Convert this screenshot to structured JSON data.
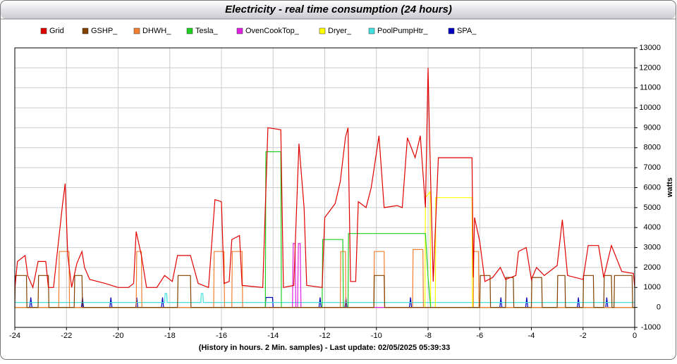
{
  "chart_data": {
    "type": "line",
    "title": "Electricity - real time consumption (24 hours)",
    "x_label": "(History in hours. 2 Min. samples) - Last update: 02/05/2025 05:39:33",
    "y_label": "watts",
    "xlim": [
      -24,
      0
    ],
    "xticks": [
      -24,
      -22,
      -20,
      -18,
      -16,
      -14,
      -12,
      -10,
      -8,
      -6,
      -4,
      -2,
      0
    ],
    "ylim": [
      -1000,
      13000
    ],
    "yticks": [
      -1000,
      0,
      1000,
      2000,
      3000,
      4000,
      5000,
      6000,
      7000,
      8000,
      9000,
      10000,
      11000,
      12000,
      13000
    ],
    "grid": true,
    "series": [
      {
        "name": "Grid",
        "color": "#e00000",
        "x": [
          -24,
          -23.9,
          -23.6,
          -23.5,
          -23.3,
          -23.1,
          -22.8,
          -22.7,
          -22.5,
          -22.35,
          -22.15,
          -22.05,
          -21.95,
          -21.8,
          -21.6,
          -21.4,
          -21.3,
          -21.1,
          -20.5,
          -20,
          -19.6,
          -19.4,
          -19.3,
          -19.1,
          -18.9,
          -18.5,
          -18.2,
          -17.9,
          -17.7,
          -17.2,
          -16.9,
          -16.5,
          -16.25,
          -16,
          -15.9,
          -15.7,
          -15.6,
          -15.3,
          -15.2,
          -14.4,
          -14.2,
          -13.7,
          -13.6,
          -13.2,
          -13,
          -12.8,
          -12.7,
          -12.1,
          -12,
          -11.6,
          -11.4,
          -11.2,
          -11.1,
          -11,
          -10.8,
          -10.7,
          -10.4,
          -10.2,
          -9.9,
          -9.7,
          -9.2,
          -9,
          -8.8,
          -8.5,
          -8.3,
          -8.1,
          -8,
          -7.95,
          -7.8,
          -7.6,
          -6.3,
          -6.25,
          -6.2,
          -6,
          -5.8,
          -5.5,
          -5.2,
          -5,
          -4.6,
          -4.5,
          -4.2,
          -4,
          -3.8,
          -3.5,
          -3,
          -2.8,
          -2.6,
          -2,
          -1.8,
          -1.4,
          -1.2,
          -0.9,
          -0.5,
          -0.05,
          0
        ],
        "values": [
          900,
          2300,
          2600,
          1600,
          1000,
          2300,
          2300,
          1000,
          1000,
          2800,
          5200,
          6200,
          2600,
          1000,
          2200,
          2800,
          2000,
          1400,
          1200,
          1000,
          1000,
          1200,
          3800,
          2600,
          1000,
          1000,
          1600,
          1300,
          2600,
          2600,
          1200,
          1000,
          5400,
          5300,
          1200,
          1300,
          3400,
          3600,
          1100,
          1000,
          9000,
          8900,
          1000,
          1100,
          8200,
          5000,
          1100,
          1000,
          4500,
          5200,
          6300,
          8500,
          9000,
          1300,
          1300,
          5300,
          5000,
          6000,
          8600,
          5000,
          5100,
          5000,
          8500,
          7500,
          8600,
          5000,
          12000,
          9000,
          1300,
          7500,
          7500,
          1500,
          4500,
          3300,
          1300,
          1500,
          2000,
          1400,
          1600,
          2800,
          3000,
          1400,
          2000,
          1600,
          2100,
          4400,
          1600,
          1400,
          3100,
          3100,
          1500,
          3100,
          1800,
          1700,
          1000
        ]
      },
      {
        "name": "GSHP_",
        "color": "#804000",
        "x": [
          -24,
          -23.98,
          -23.55,
          -23.53,
          -23.1,
          -23.08,
          -22.7,
          -22.68,
          -21.7,
          -21.68,
          -21.4,
          -21.38,
          -17.7,
          -17.68,
          -17.2,
          -17.18,
          -10.1,
          -10.08,
          -9.7,
          -9.68,
          -6,
          -5.98,
          -5.6,
          -5.58,
          -5,
          -4.98,
          -4.7,
          -4.68,
          -4,
          -3.98,
          -3.6,
          -3.58,
          -3,
          -2.98,
          -2.7,
          -2.68,
          -2,
          -1.98,
          -1.6,
          -1.58,
          -1.2,
          -1.18,
          -0.9,
          -0.88,
          -0.8,
          -0.78,
          -0.1,
          -0.08,
          0
        ],
        "values": [
          0,
          1600,
          1600,
          0,
          0,
          1600,
          1600,
          0,
          0,
          1600,
          1600,
          0,
          0,
          1600,
          1600,
          0,
          0,
          1600,
          1600,
          0,
          0,
          1600,
          1600,
          0,
          0,
          1500,
          1500,
          0,
          0,
          1500,
          1500,
          0,
          0,
          1600,
          1600,
          0,
          0,
          1600,
          1600,
          0,
          0,
          1600,
          1600,
          0,
          0,
          1600,
          1600,
          0,
          0
        ]
      },
      {
        "name": "DHWH_",
        "color": "#f08030",
        "x": [
          -24,
          -22.3,
          -22.28,
          -21.9,
          -21.88,
          -19.3,
          -19.28,
          -19.1,
          -19.08,
          -16.3,
          -16.28,
          -15.9,
          -15.88,
          -15.6,
          -15.58,
          -15.2,
          -15.18,
          -11.4,
          -11.38,
          -11.2,
          -11.18,
          -10.1,
          -10.08,
          -9.7,
          -9.68,
          -8.6,
          -8.58,
          -8.2,
          -8.18,
          -6.25,
          -6.23,
          -6.05,
          -6.03,
          0
        ],
        "values": [
          0,
          0,
          2800,
          2800,
          0,
          0,
          2800,
          2800,
          0,
          0,
          2800,
          2800,
          0,
          0,
          2800,
          2800,
          0,
          0,
          2800,
          2800,
          0,
          0,
          2800,
          2800,
          0,
          0,
          2900,
          2900,
          0,
          0,
          2800,
          2800,
          0,
          0
        ]
      },
      {
        "name": "Tesla_",
        "color": "#20d020",
        "x": [
          -24,
          -14.3,
          -14.28,
          -13.7,
          -13.68,
          -12.1,
          -12.08,
          -11.3,
          -11.28,
          -11.1,
          -11.08,
          -8.1,
          -8,
          -7.9,
          0
        ],
        "values": [
          0,
          0,
          7800,
          7800,
          0,
          0,
          3400,
          3400,
          0,
          0,
          3700,
          3700,
          1500,
          0,
          0
        ]
      },
      {
        "name": "OvenCookTop_",
        "color": "#e020e0",
        "x": [
          -24,
          -13.25,
          -13.22,
          -13.15,
          -13.12,
          -13.05,
          -13.02,
          -12.95,
          -12.92,
          0
        ],
        "values": [
          0,
          0,
          3200,
          3200,
          0,
          0,
          3200,
          3200,
          0,
          0
        ]
      },
      {
        "name": "Dryer_",
        "color": "#ffff00",
        "x": [
          -24,
          -8.12,
          -8.1,
          -7.92,
          -7.9,
          -7.72,
          -7.7,
          -6.3,
          -6.28,
          0
        ],
        "values": [
          0,
          0,
          5500,
          5800,
          0,
          0,
          5500,
          5500,
          0,
          0
        ]
      },
      {
        "name": "PoolPumpHtr_",
        "color": "#40e0e0",
        "x": [
          -24,
          -18.2,
          -18.18,
          -18.12,
          -18.1,
          -16.8,
          -16.78,
          -16.72,
          -16.7,
          0
        ],
        "values": [
          250,
          250,
          700,
          700,
          250,
          250,
          700,
          700,
          250,
          250
        ]
      },
      {
        "name": "SPA_",
        "color": "#0000c0",
        "x": [
          -24,
          -23.42,
          -23.38,
          -23.34,
          -21.42,
          -21.38,
          -21.34,
          -20.32,
          -20.28,
          -20.24,
          -19.32,
          -19.28,
          -19.24,
          -18.32,
          -18.28,
          -18.24,
          -14.3,
          -14.28,
          -14.02,
          -14,
          -12.22,
          -12.18,
          -12.14,
          -11.22,
          -11.18,
          -11.14,
          -8.72,
          -8.68,
          -8.64,
          -5.22,
          -5.18,
          -5.14,
          -4.22,
          -4.18,
          -4.14,
          -2.22,
          -2.18,
          -2.14,
          -1.12,
          -1.08,
          -1.04,
          0
        ],
        "values": [
          0,
          0,
          500,
          0,
          0,
          500,
          0,
          0,
          500,
          0,
          0,
          500,
          0,
          0,
          500,
          0,
          0,
          500,
          500,
          0,
          0,
          500,
          0,
          0,
          500,
          0,
          0,
          500,
          0,
          0,
          500,
          0,
          0,
          500,
          0,
          0,
          500,
          0,
          0,
          500,
          0,
          0
        ]
      }
    ]
  }
}
